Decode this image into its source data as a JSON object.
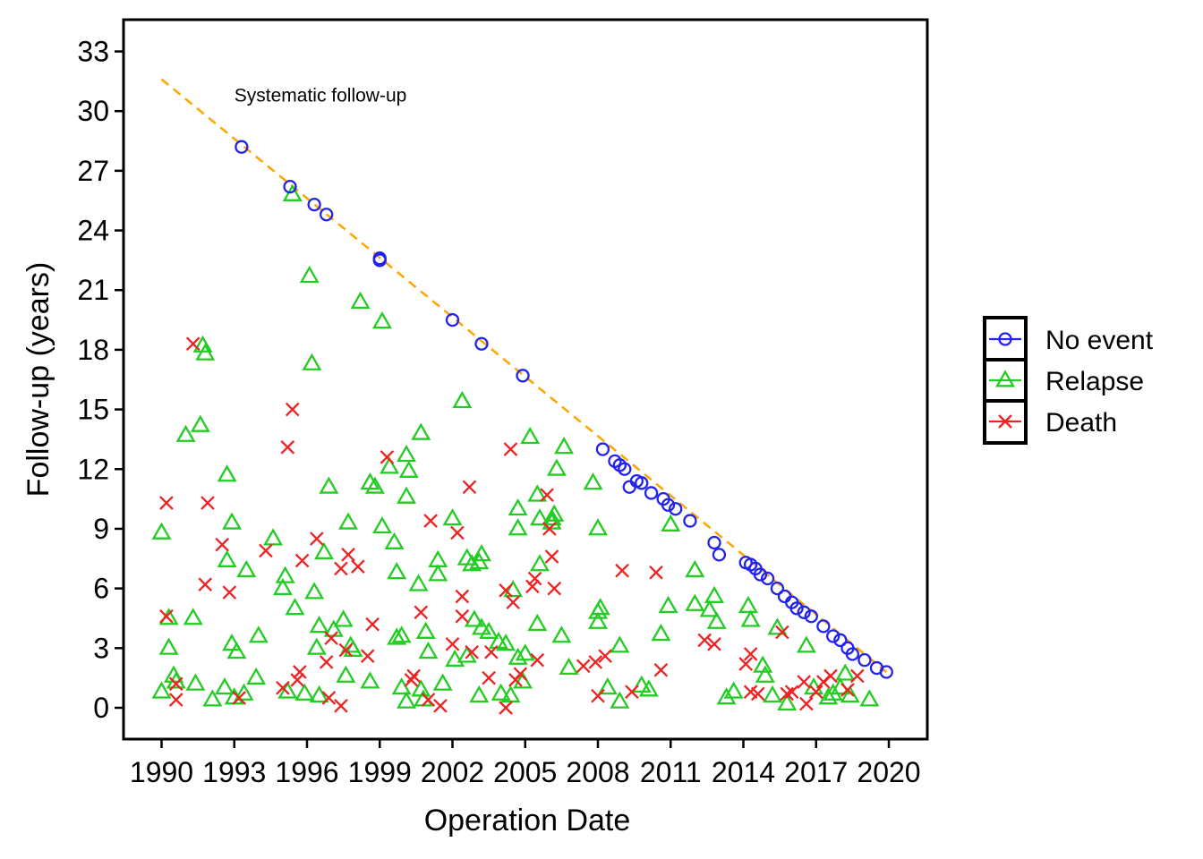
{
  "chart_data": {
    "type": "scatter",
    "xlabel": "Operation Date",
    "ylabel": "Follow-up (years)",
    "xlim": [
      1990,
      2020
    ],
    "ylim": [
      0,
      33
    ],
    "x_ticks": [
      1990,
      1993,
      1996,
      1999,
      2002,
      2005,
      2008,
      2011,
      2014,
      2017,
      2020
    ],
    "y_ticks": [
      0,
      3,
      6,
      9,
      12,
      15,
      18,
      21,
      24,
      27,
      30,
      33
    ],
    "grid": false,
    "legend_position": "right",
    "annotation": {
      "text": "Systematic follow-up",
      "x": 1993,
      "y": 30.8
    },
    "reference_line": {
      "style": "dashed",
      "color": "#FFA500",
      "points": [
        [
          1990,
          31.6
        ],
        [
          2019.9,
          1.8
        ]
      ]
    },
    "series": [
      {
        "name": "No event",
        "marker": "circle",
        "color": "#2222EE",
        "points": [
          [
            1993.3,
            28.2
          ],
          [
            1995.3,
            26.2
          ],
          [
            1996.3,
            25.3
          ],
          [
            1996.8,
            24.8
          ],
          [
            1999.0,
            22.6
          ],
          [
            1999.0,
            22.5
          ],
          [
            2002.0,
            19.5
          ],
          [
            2003.2,
            18.3
          ],
          [
            2004.9,
            16.7
          ],
          [
            2008.2,
            13.0
          ],
          [
            2008.7,
            12.4
          ],
          [
            2008.9,
            12.2
          ],
          [
            2009.1,
            12.0
          ],
          [
            2009.3,
            11.1
          ],
          [
            2009.6,
            11.4
          ],
          [
            2009.8,
            11.3
          ],
          [
            2010.2,
            10.8
          ],
          [
            2010.7,
            10.5
          ],
          [
            2010.9,
            10.2
          ],
          [
            2011.2,
            10.0
          ],
          [
            2011.8,
            9.4
          ],
          [
            2012.8,
            8.3
          ],
          [
            2013.0,
            7.7
          ],
          [
            2014.1,
            7.3
          ],
          [
            2014.3,
            7.2
          ],
          [
            2014.5,
            7.0
          ],
          [
            2014.7,
            6.7
          ],
          [
            2015.0,
            6.5
          ],
          [
            2015.4,
            6.0
          ],
          [
            2015.7,
            5.6
          ],
          [
            2016.0,
            5.3
          ],
          [
            2016.2,
            5.0
          ],
          [
            2016.5,
            4.8
          ],
          [
            2016.8,
            4.6
          ],
          [
            2017.3,
            4.1
          ],
          [
            2017.7,
            3.6
          ],
          [
            2018.0,
            3.4
          ],
          [
            2018.3,
            3.0
          ],
          [
            2018.5,
            2.7
          ],
          [
            2019.0,
            2.4
          ],
          [
            2019.5,
            2.0
          ],
          [
            2019.9,
            1.8
          ]
        ]
      },
      {
        "name": "Relapse",
        "marker": "triangle",
        "color": "#22CC22",
        "points": [
          [
            1990.0,
            8.8
          ],
          [
            1990.3,
            3.0
          ],
          [
            1990.5,
            1.6
          ],
          [
            1990.0,
            0.8
          ],
          [
            1990.3,
            4.5
          ],
          [
            1990.6,
            1.3
          ],
          [
            1991.0,
            13.7
          ],
          [
            1991.3,
            4.5
          ],
          [
            1991.4,
            1.2
          ],
          [
            1991.6,
            14.2
          ],
          [
            1991.7,
            18.2
          ],
          [
            1991.8,
            17.8
          ],
          [
            1992.1,
            0.4
          ],
          [
            1992.6,
            1.0
          ],
          [
            1992.7,
            7.4
          ],
          [
            1992.7,
            11.7
          ],
          [
            1992.9,
            9.3
          ],
          [
            1992.9,
            3.2
          ],
          [
            1993.1,
            2.8
          ],
          [
            1993.0,
            0.5
          ],
          [
            1993.4,
            0.7
          ],
          [
            1993.5,
            6.9
          ],
          [
            1993.9,
            1.5
          ],
          [
            1994.0,
            3.6
          ],
          [
            1994.6,
            8.5
          ],
          [
            1995.0,
            6.0
          ],
          [
            1995.1,
            6.6
          ],
          [
            1995.2,
            0.8
          ],
          [
            1995.4,
            25.8
          ],
          [
            1995.5,
            5.0
          ],
          [
            1995.9,
            0.7
          ],
          [
            1996.1,
            21.7
          ],
          [
            1996.2,
            17.3
          ],
          [
            1996.3,
            5.8
          ],
          [
            1996.4,
            3.0
          ],
          [
            1996.5,
            4.1
          ],
          [
            1996.5,
            0.6
          ],
          [
            1996.7,
            7.8
          ],
          [
            1996.9,
            11.1
          ],
          [
            1997.1,
            3.9
          ],
          [
            1997.5,
            4.4
          ],
          [
            1997.6,
            1.6
          ],
          [
            1997.7,
            9.3
          ],
          [
            1997.8,
            3.1
          ],
          [
            1997.9,
            2.9
          ],
          [
            1998.2,
            20.4
          ],
          [
            1998.6,
            11.3
          ],
          [
            1998.8,
            11.1
          ],
          [
            1998.6,
            1.3
          ],
          [
            1999.1,
            19.4
          ],
          [
            1999.1,
            9.1
          ],
          [
            1999.4,
            12.1
          ],
          [
            1999.6,
            8.3
          ],
          [
            1999.7,
            3.5
          ],
          [
            1999.7,
            6.8
          ],
          [
            1999.9,
            3.6
          ],
          [
            1999.9,
            1.0
          ],
          [
            2000.1,
            10.6
          ],
          [
            2000.1,
            12.7
          ],
          [
            2000.2,
            11.9
          ],
          [
            2000.1,
            0.3
          ],
          [
            2000.6,
            6.2
          ],
          [
            2000.7,
            13.8
          ],
          [
            2000.8,
            0.4
          ],
          [
            2000.7,
            0.9
          ],
          [
            2000.9,
            3.8
          ],
          [
            2001.4,
            7.4
          ],
          [
            2001.4,
            6.7
          ],
          [
            2001.0,
            2.8
          ],
          [
            2001.6,
            1.2
          ],
          [
            2002.0,
            9.5
          ],
          [
            2002.1,
            2.4
          ],
          [
            2002.4,
            15.4
          ],
          [
            2002.6,
            7.5
          ],
          [
            2002.6,
            2.6
          ],
          [
            2002.8,
            7.2
          ],
          [
            2002.9,
            4.4
          ],
          [
            2003.1,
            7.3
          ],
          [
            2003.2,
            7.7
          ],
          [
            2003.2,
            4.0
          ],
          [
            2003.1,
            0.6
          ],
          [
            2003.5,
            3.8
          ],
          [
            2003.9,
            3.3
          ],
          [
            2004.0,
            0.7
          ],
          [
            2004.2,
            3.2
          ],
          [
            2004.4,
            0.6
          ],
          [
            2004.5,
            5.9
          ],
          [
            2004.7,
            10.0
          ],
          [
            2004.7,
            9.0
          ],
          [
            2004.9,
            1.3
          ],
          [
            2004.7,
            2.5
          ],
          [
            2005.0,
            2.7
          ],
          [
            2005.2,
            13.6
          ],
          [
            2005.5,
            4.2
          ],
          [
            2005.5,
            10.7
          ],
          [
            2005.6,
            9.5
          ],
          [
            2005.6,
            7.2
          ],
          [
            2006.1,
            9.3
          ],
          [
            2006.2,
            9.7
          ],
          [
            2006.1,
            9.5
          ],
          [
            2006.3,
            12.0
          ],
          [
            2006.5,
            3.6
          ],
          [
            2006.6,
            13.1
          ],
          [
            2006.8,
            2.0
          ],
          [
            2007.8,
            11.3
          ],
          [
            2008.0,
            9.0
          ],
          [
            2008.0,
            4.8
          ],
          [
            2008.1,
            5.0
          ],
          [
            2008.0,
            4.3
          ],
          [
            2008.4,
            1.0
          ],
          [
            2008.9,
            3.1
          ],
          [
            2008.9,
            0.3
          ],
          [
            2009.8,
            1.1
          ],
          [
            2010.1,
            0.9
          ],
          [
            2010.6,
            3.7
          ],
          [
            2010.9,
            5.1
          ],
          [
            2011.0,
            9.2
          ],
          [
            2012.0,
            5.2
          ],
          [
            2012.0,
            6.9
          ],
          [
            2012.6,
            4.9
          ],
          [
            2012.8,
            5.6
          ],
          [
            2012.9,
            4.3
          ],
          [
            2013.3,
            0.5
          ],
          [
            2013.6,
            0.8
          ],
          [
            2014.2,
            5.1
          ],
          [
            2014.3,
            4.4
          ],
          [
            2014.8,
            2.1
          ],
          [
            2014.9,
            1.6
          ],
          [
            2015.2,
            0.6
          ],
          [
            2015.4,
            4.0
          ],
          [
            2015.8,
            0.2
          ],
          [
            2016.6,
            3.1
          ],
          [
            2016.9,
            1.0
          ],
          [
            2017.5,
            0.5
          ],
          [
            2017.7,
            0.7
          ],
          [
            2018.0,
            1.0
          ],
          [
            2018.2,
            1.7
          ],
          [
            2018.4,
            0.6
          ],
          [
            2019.2,
            0.4
          ]
        ]
      },
      {
        "name": "Death",
        "marker": "cross",
        "color": "#EE2222",
        "points": [
          [
            1990.2,
            10.3
          ],
          [
            1990.2,
            4.6
          ],
          [
            1990.6,
            1.2
          ],
          [
            1990.6,
            0.4
          ],
          [
            1991.3,
            18.3
          ],
          [
            1991.9,
            10.3
          ],
          [
            1991.8,
            6.2
          ],
          [
            1992.5,
            8.2
          ],
          [
            1992.8,
            5.8
          ],
          [
            1993.2,
            0.5
          ],
          [
            1994.3,
            7.9
          ],
          [
            1995.0,
            1.0
          ],
          [
            1995.2,
            13.1
          ],
          [
            1995.4,
            15.0
          ],
          [
            1995.7,
            1.8
          ],
          [
            1995.8,
            7.4
          ],
          [
            1995.6,
            1.4
          ],
          [
            1996.4,
            8.5
          ],
          [
            1996.8,
            2.3
          ],
          [
            1996.9,
            0.5
          ],
          [
            1997.0,
            3.5
          ],
          [
            1997.4,
            0.1
          ],
          [
            1997.4,
            7.0
          ],
          [
            1997.6,
            2.9
          ],
          [
            1997.7,
            7.7
          ],
          [
            1998.1,
            7.1
          ],
          [
            1998.5,
            2.6
          ],
          [
            1998.7,
            4.2
          ],
          [
            1999.3,
            12.6
          ],
          [
            2000.3,
            1.4
          ],
          [
            2001.1,
            9.4
          ],
          [
            2000.4,
            1.6
          ],
          [
            2000.7,
            4.8
          ],
          [
            2001.0,
            0.4
          ],
          [
            2001.5,
            0.1
          ],
          [
            2002.0,
            3.2
          ],
          [
            2002.2,
            8.8
          ],
          [
            2002.4,
            4.6
          ],
          [
            2002.4,
            5.6
          ],
          [
            2002.8,
            2.8
          ],
          [
            2002.7,
            11.1
          ],
          [
            2003.5,
            1.5
          ],
          [
            2003.6,
            2.8
          ],
          [
            2004.2,
            5.9
          ],
          [
            2004.2,
            0.0
          ],
          [
            2004.4,
            13.0
          ],
          [
            2004.5,
            5.3
          ],
          [
            2004.6,
            1.4
          ],
          [
            2004.8,
            1.7
          ],
          [
            2005.4,
            6.5
          ],
          [
            2005.3,
            6.1
          ],
          [
            2005.5,
            2.4
          ],
          [
            2005.9,
            10.7
          ],
          [
            2006.0,
            9.0
          ],
          [
            2006.1,
            7.6
          ],
          [
            2006.2,
            6.0
          ],
          [
            2007.4,
            2.1
          ],
          [
            2007.9,
            2.3
          ],
          [
            2008.3,
            2.6
          ],
          [
            2008.0,
            0.6
          ],
          [
            2009.0,
            6.9
          ],
          [
            2009.4,
            0.8
          ],
          [
            2010.4,
            6.8
          ],
          [
            2010.6,
            1.9
          ],
          [
            2012.4,
            3.4
          ],
          [
            2012.8,
            3.2
          ],
          [
            2014.1,
            2.2
          ],
          [
            2014.3,
            2.7
          ],
          [
            2014.3,
            0.8
          ],
          [
            2014.6,
            0.7
          ],
          [
            2015.6,
            3.8
          ],
          [
            2015.8,
            0.7
          ],
          [
            2016.0,
            0.8
          ],
          [
            2016.5,
            1.3
          ],
          [
            2016.6,
            0.2
          ],
          [
            2017.0,
            0.8
          ],
          [
            2017.3,
            1.3
          ],
          [
            2017.6,
            1.6
          ],
          [
            2018.3,
            0.9
          ],
          [
            2018.7,
            1.6
          ]
        ]
      }
    ]
  }
}
